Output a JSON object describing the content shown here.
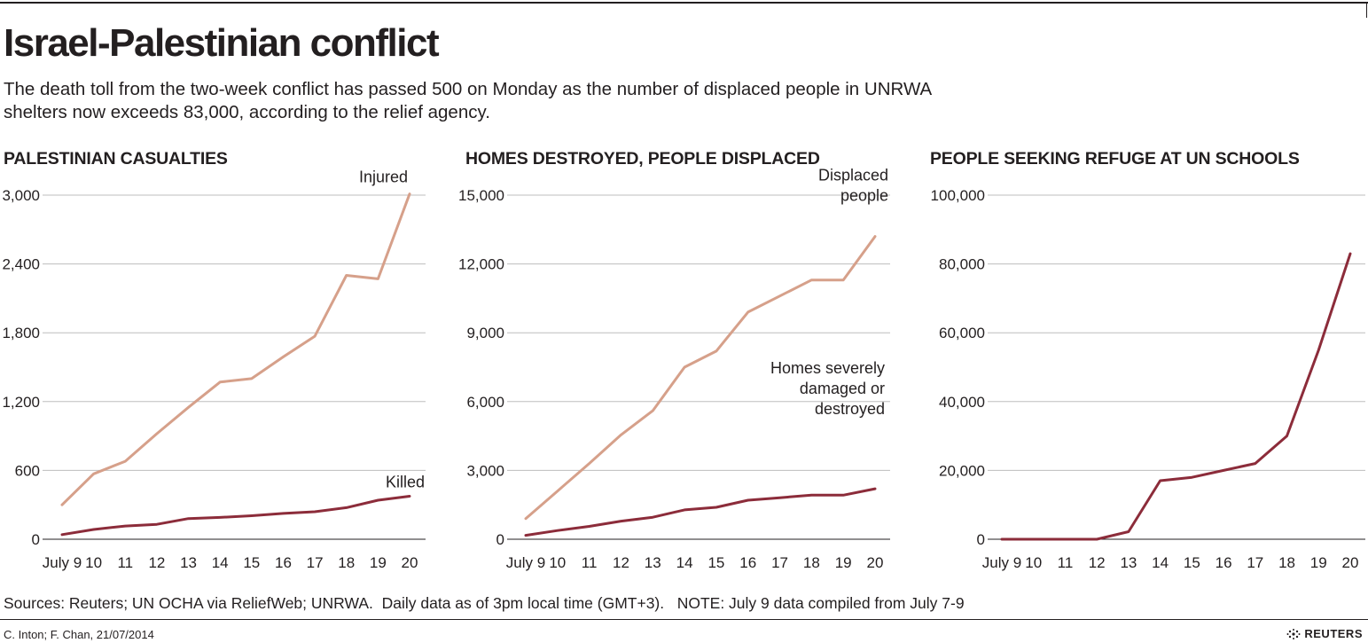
{
  "header": {
    "title": "Israel-Palestinian conflict",
    "subtitle": "The death toll from the two-week conflict has passed 500 on Monday as the number of displaced people in UNRWA shelters now exceeds 83,000, according to the relief agency."
  },
  "footer": {
    "sources": "Sources: Reuters; UN OCHA via ReliefWeb; UNRWA.  Daily data as of 3pm local time (GMT+3).   NOTE: July 9 data compiled from July 7-9",
    "credit": "C. Inton; F. Chan, 21/07/2014",
    "brand": "REUTERS"
  },
  "colors": {
    "light_series": "#d6a08a",
    "dark_series": "#8c2c3a",
    "grid": "#bdbdbd",
    "text": "#231f20"
  },
  "chart_data": [
    {
      "type": "line",
      "title": "PALESTINIAN CASUALTIES",
      "categories": [
        "July 9",
        "10",
        "11",
        "12",
        "13",
        "14",
        "15",
        "16",
        "17",
        "18",
        "19",
        "20"
      ],
      "ylim": [
        0,
        3000
      ],
      "yticks": [
        0,
        600,
        1200,
        1800,
        2400,
        3000
      ],
      "ytick_labels": [
        "0",
        "600",
        "1,200",
        "1,800",
        "2,400",
        "3,000"
      ],
      "grid": true,
      "series": [
        {
          "name": "Injured",
          "color": "#d6a08a",
          "values": [
            300,
            570,
            680,
            920,
            1150,
            1370,
            1400,
            1590,
            1770,
            2300,
            2270,
            3010
          ]
        },
        {
          "name": "Killed",
          "color": "#8c2c3a",
          "values": [
            40,
            85,
            115,
            130,
            180,
            190,
            205,
            225,
            240,
            275,
            340,
            375
          ]
        }
      ]
    },
    {
      "type": "line",
      "title": "HOMES DESTROYED, PEOPLE DISPLACED",
      "categories": [
        "July 9",
        "10",
        "11",
        "12",
        "13",
        "14",
        "15",
        "16",
        "17",
        "18",
        "19",
        "20"
      ],
      "ylim": [
        0,
        15000
      ],
      "yticks": [
        0,
        3000,
        6000,
        9000,
        12000,
        15000
      ],
      "ytick_labels": [
        "0",
        "3,000",
        "6,000",
        "9,000",
        "12,000",
        "15,000"
      ],
      "grid": true,
      "series": [
        {
          "name": "Displaced people",
          "label_lines": [
            "Displaced",
            "people"
          ],
          "color": "#d6a08a",
          "values": [
            900,
            2100,
            3300,
            4550,
            5600,
            7500,
            8200,
            9900,
            10600,
            11300,
            11300,
            13200
          ]
        },
        {
          "name": "Homes severely damaged or destroyed",
          "label_lines": [
            "Homes severely",
            "damaged or",
            "destroyed"
          ],
          "color": "#8c2c3a",
          "values": [
            170,
            380,
            560,
            790,
            960,
            1280,
            1390,
            1700,
            1810,
            1920,
            1920,
            2200
          ]
        }
      ]
    },
    {
      "type": "line",
      "title": "PEOPLE SEEKING REFUGE AT UN SCHOOLS",
      "categories": [
        "July 9",
        "10",
        "11",
        "12",
        "13",
        "14",
        "15",
        "16",
        "17",
        "18",
        "19",
        "20"
      ],
      "ylim": [
        0,
        100000
      ],
      "yticks": [
        0,
        20000,
        40000,
        60000,
        80000,
        100000
      ],
      "ytick_labels": [
        "0",
        "20,000",
        "40,000",
        "60,000",
        "80,000",
        "100,000"
      ],
      "grid": true,
      "series": [
        {
          "color": "#8c2c3a",
          "values": [
            0,
            0,
            0,
            0,
            2200,
            17000,
            18000,
            20000,
            22000,
            30000,
            55000,
            83000
          ]
        }
      ]
    }
  ]
}
